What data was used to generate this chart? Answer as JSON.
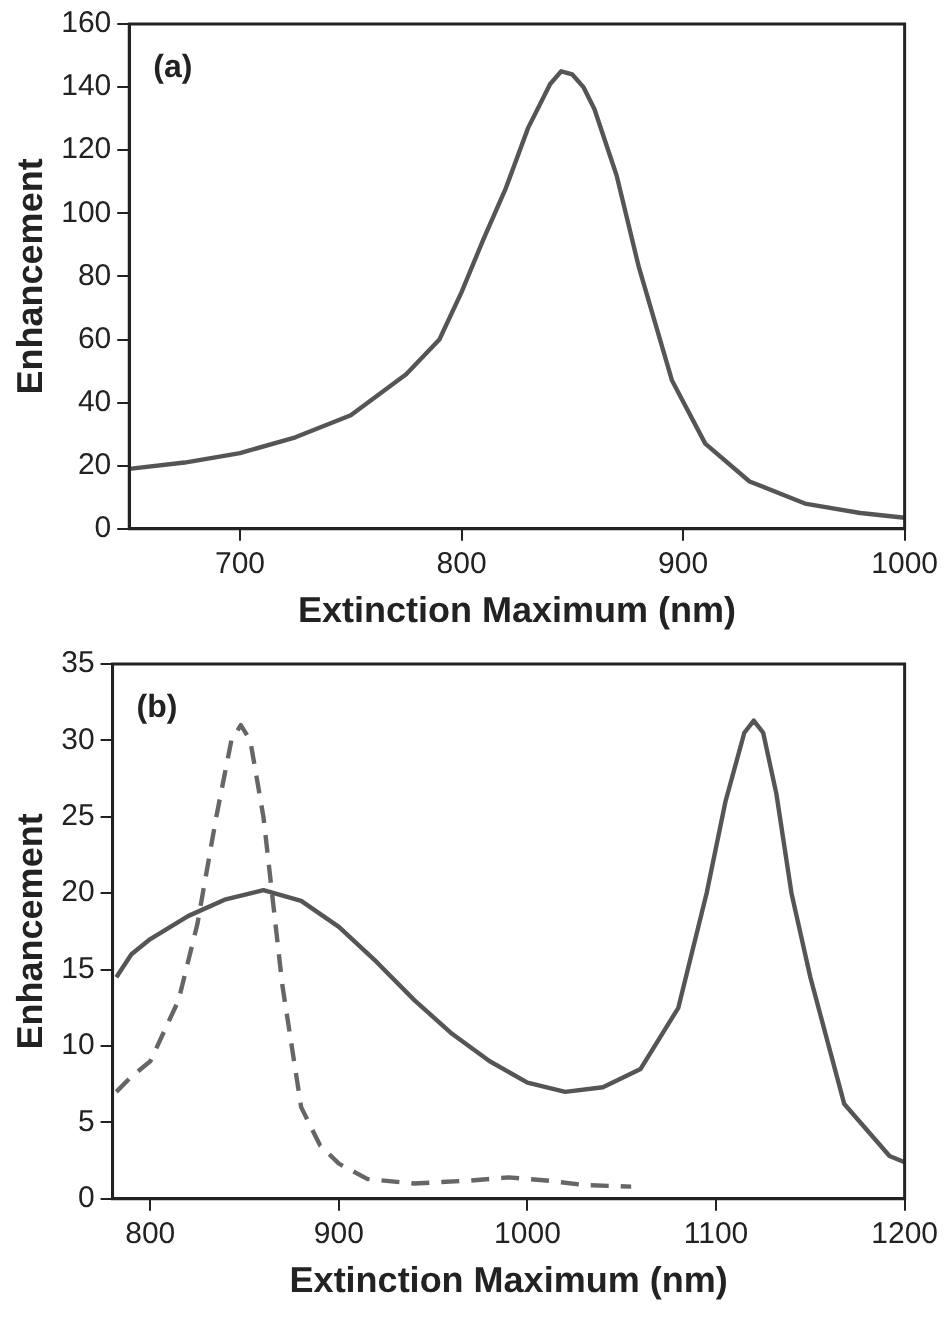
{
  "chart_data": [
    {
      "type": "line",
      "xlabel": "Extinction Maximum (nm)",
      "ylabel": "Enhancement",
      "annotations": [
        "(a)"
      ],
      "xlim": [
        650,
        1000
      ],
      "xticks": [
        700,
        800,
        900,
        1000
      ],
      "ylim": [
        0,
        160
      ],
      "yticks": [
        0,
        20,
        40,
        60,
        80,
        100,
        120,
        140,
        160
      ],
      "series": [
        {
          "color": "#555555",
          "line_style": "solid",
          "x": [
            650,
            675,
            700,
            725,
            750,
            775,
            790,
            800,
            810,
            820,
            830,
            840,
            845,
            850,
            855,
            860,
            870,
            880,
            895,
            910,
            930,
            955,
            980,
            1000
          ],
          "values": [
            19,
            21,
            24,
            29,
            36,
            49,
            60,
            75,
            92,
            108,
            127,
            141,
            145,
            144,
            140,
            133,
            112,
            83,
            47,
            27,
            15,
            8,
            5,
            3.5
          ]
        }
      ]
    },
    {
      "type": "line",
      "xlabel": "Extinction Maximum (nm)",
      "ylabel": "Enhancement",
      "annotations": [
        "(b)"
      ],
      "xlim": [
        780,
        1200
      ],
      "xticks": [
        800,
        900,
        1000,
        1100,
        1200
      ],
      "ylim": [
        0,
        35
      ],
      "yticks": [
        0,
        5,
        10,
        15,
        20,
        25,
        30,
        35
      ],
      "series": [
        {
          "color": "#555555",
          "line_style": "solid",
          "x": [
            782,
            790,
            800,
            820,
            840,
            860,
            880,
            900,
            920,
            940,
            960,
            980,
            1000,
            1020,
            1040,
            1060,
            1080,
            1095,
            1105,
            1115,
            1120,
            1125,
            1132,
            1140,
            1150,
            1168,
            1180,
            1192,
            1200
          ],
          "values": [
            14.5,
            16,
            17,
            18.5,
            19.6,
            20.2,
            19.5,
            17.8,
            15.5,
            13,
            10.8,
            9,
            7.6,
            7,
            7.3,
            8.5,
            12.5,
            20,
            26,
            30.5,
            31.3,
            30.5,
            26.5,
            20,
            14.5,
            6.2,
            4.5,
            2.8,
            2.4
          ]
        },
        {
          "color": "#666666",
          "line_style": "dashed",
          "x": [
            782,
            790,
            800,
            815,
            825,
            835,
            843,
            848,
            853,
            860,
            870,
            880,
            890,
            900,
            915,
            940,
            970,
            990,
            1010,
            1030,
            1055
          ],
          "values": [
            7,
            8,
            9,
            13,
            18,
            25,
            30,
            31,
            30,
            25,
            14,
            6,
            3.5,
            2.3,
            1.3,
            1,
            1.2,
            1.4,
            1.2,
            0.9,
            0.8
          ]
        }
      ]
    }
  ]
}
